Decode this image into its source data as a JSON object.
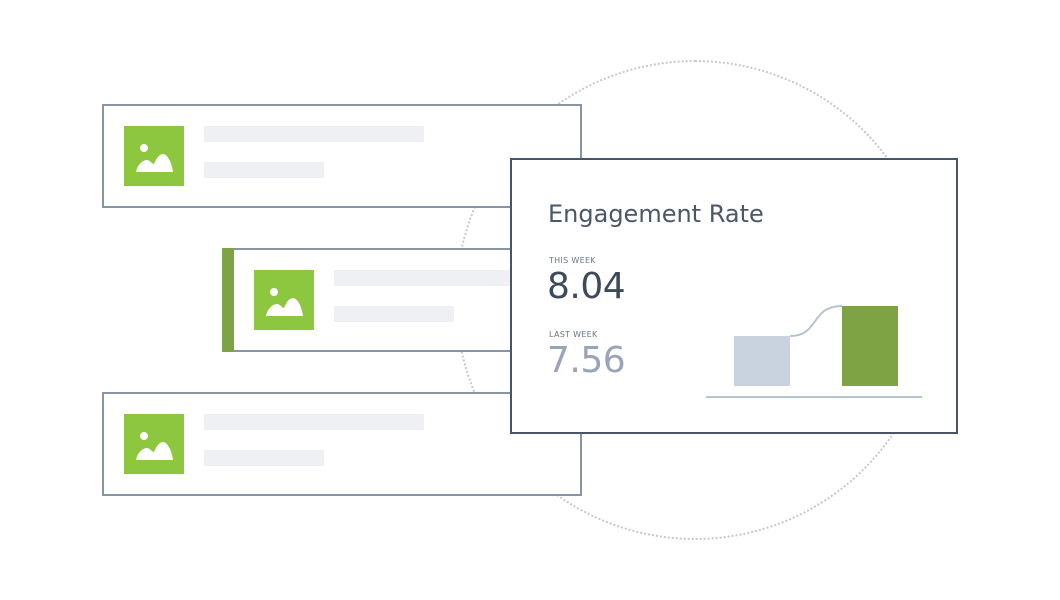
{
  "metric": {
    "title": "Engagement Rate",
    "this_week_label": "This week",
    "this_week_value": "8.04",
    "last_week_label": "Last week",
    "last_week_value": "7.56"
  },
  "colors": {
    "thumbnail": "#8dc63f",
    "accent": "#7ea345",
    "last_week_bar": "#c9d3e0",
    "this_week_bar": "#7ea345",
    "card_border": "#8795a6",
    "metric_border": "#4a5568"
  },
  "posts": [
    {
      "icon": "image-icon",
      "selected": false
    },
    {
      "icon": "image-icon",
      "selected": true
    },
    {
      "icon": "image-icon",
      "selected": false
    }
  ],
  "chart_data": {
    "type": "bar",
    "categories": [
      "",
      ""
    ],
    "values": [
      7.56,
      8.04
    ],
    "title": "",
    "xlabel": "",
    "ylabel": ""
  }
}
